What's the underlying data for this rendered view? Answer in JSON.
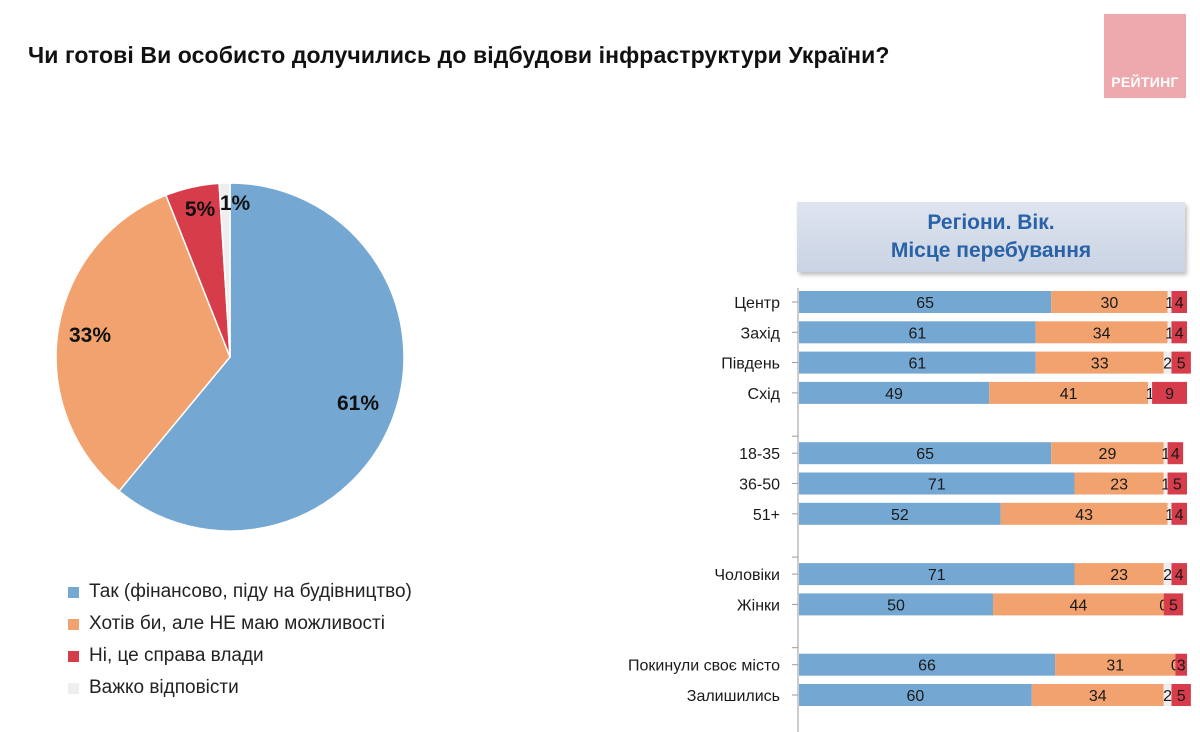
{
  "title": "Чи готові Ви особисто долучились до відбудови інфраструктури України?",
  "logo": {
    "text": "РЕЙТИНГ",
    "color": "#eda9ad"
  },
  "panel_header": {
    "line1": "Регіони. Вік.",
    "line2": "Місце перебування"
  },
  "colors": {
    "yes": "#74a7d2",
    "want": "#f2a26e",
    "gov": "#d63c4a",
    "hard": "#eeeeee"
  },
  "legend": [
    {
      "label": "Так (фінансово, піду на будівництво)",
      "color": "#74a7d2"
    },
    {
      "label": "Хотів би, але НЕ маю можливості",
      "color": "#f2a26e"
    },
    {
      "label": "Ні, це справа влади",
      "color": "#d63c4a"
    },
    {
      "label": "Важко відповісти",
      "color": "#eeeeee"
    }
  ],
  "chart_data": [
    {
      "type": "pie",
      "title": "",
      "slices": [
        {
          "name": "Так (фінансово, піду на будівництво)",
          "value": 61,
          "label": "61%",
          "color": "#74a7d2"
        },
        {
          "name": "Хотів би, але НЕ маю можливості",
          "value": 33,
          "label": "33%",
          "color": "#f2a26e"
        },
        {
          "name": "Ні, це справа влади",
          "value": 5,
          "label": "5%",
          "color": "#d63c4a"
        },
        {
          "name": "Важко відповісти",
          "value": 1,
          "label": "1%",
          "color": "#eeeeee"
        }
      ],
      "start": "12 o'clock",
      "direction": "clockwise"
    },
    {
      "type": "bar",
      "orientation": "horizontal",
      "stacked": true,
      "title": "Регіони. Вік. Місце перебування",
      "xlim": [
        0,
        100
      ],
      "groups": [
        {
          "rows": [
            {
              "label": "Центр",
              "values": [
                65,
                30,
                1,
                4
              ]
            },
            {
              "label": "Захід",
              "values": [
                61,
                34,
                1,
                4
              ]
            },
            {
              "label": "Південь",
              "values": [
                61,
                33,
                2,
                5
              ]
            },
            {
              "label": "Схід",
              "values": [
                49,
                41,
                1,
                9
              ]
            }
          ]
        },
        {
          "rows": [
            {
              "label": "18-35",
              "values": [
                65,
                29,
                1,
                4
              ]
            },
            {
              "label": "36-50",
              "values": [
                71,
                23,
                1,
                5
              ]
            },
            {
              "label": "51+",
              "values": [
                52,
                43,
                1,
                4
              ]
            }
          ]
        },
        {
          "rows": [
            {
              "label": "Чоловіки",
              "values": [
                71,
                23,
                2,
                4
              ]
            },
            {
              "label": "Жінки",
              "values": [
                50,
                44,
                0,
                5
              ]
            }
          ]
        },
        {
          "rows": [
            {
              "label": "Покинули своє місто",
              "values": [
                66,
                31,
                0,
                3
              ]
            },
            {
              "label": "Залишились",
              "values": [
                60,
                34,
                2,
                5
              ]
            }
          ]
        }
      ],
      "series": [
        {
          "name": "Так (фінансово, піду на будівництво)",
          "color": "#74a7d2"
        },
        {
          "name": "Хотів би, але НЕ маю можливості",
          "color": "#f2a26e"
        },
        {
          "name": "Важко відповісти",
          "color": "#eeeeee"
        },
        {
          "name": "Ні, це справа влади",
          "color": "#d63c4a"
        }
      ]
    }
  ]
}
